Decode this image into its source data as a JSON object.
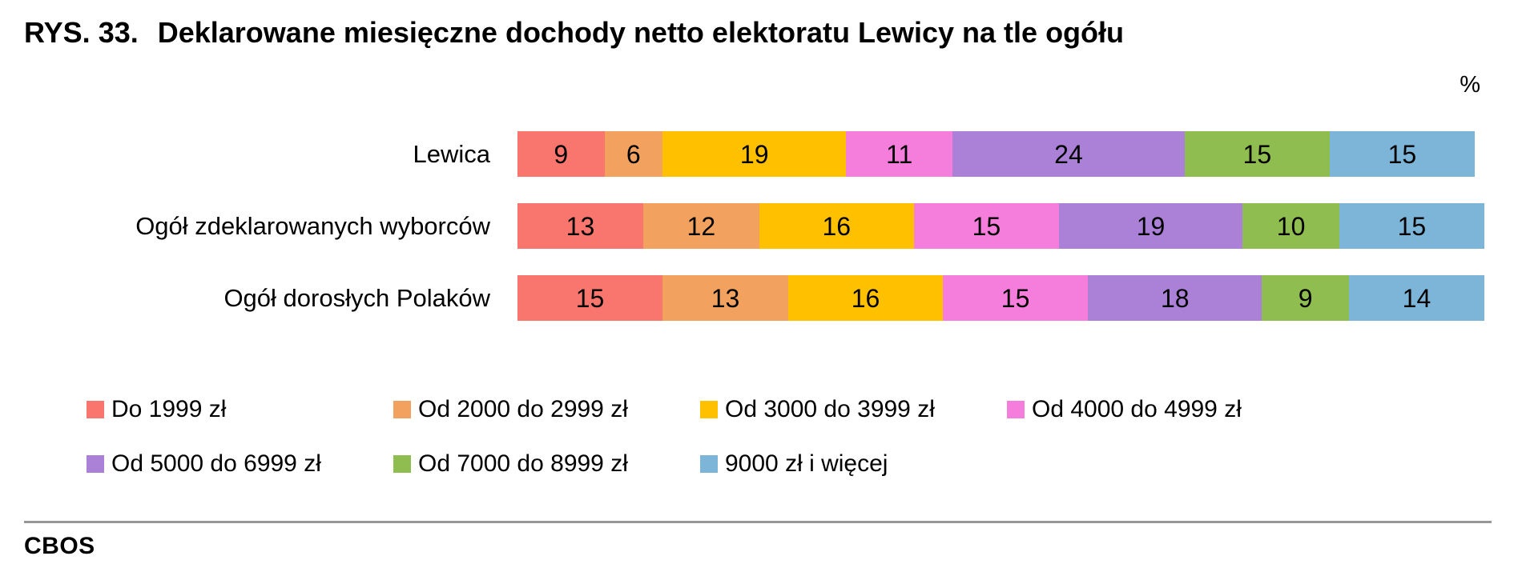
{
  "figure": {
    "number_label": "RYS. 33.",
    "title": "Deklarowane miesięczne dochody netto elektoratu Lewicy na tle ogółu",
    "unit_label": "%",
    "source_label": "CBOS"
  },
  "chart_data": {
    "type": "bar",
    "orientation": "horizontal-stacked",
    "unit": "%",
    "xlim": [
      0,
      100
    ],
    "legend_position": "bottom",
    "categories": [
      "Do 1999 zł",
      "Od 2000 do 2999 zł",
      "Od 3000 do 3999 zł",
      "Od 4000 do 4999 zł",
      "Od 5000 do 6999 zł",
      "Od 7000 do 8999 zł",
      "9000 zł i więcej"
    ],
    "colors": [
      "#F8766D",
      "#F2A25E",
      "#FFC000",
      "#F57EDC",
      "#AB81D8",
      "#8FBD4F",
      "#7CB5D8"
    ],
    "rows": [
      {
        "label": "Lewica",
        "values": [
          9,
          6,
          19,
          11,
          24,
          15,
          15
        ]
      },
      {
        "label": "Ogół zdeklarowanych wyborców",
        "values": [
          13,
          12,
          16,
          15,
          19,
          10,
          15
        ]
      },
      {
        "label": "Ogół dorosłych Polaków",
        "values": [
          15,
          13,
          16,
          15,
          18,
          9,
          14
        ]
      }
    ]
  }
}
